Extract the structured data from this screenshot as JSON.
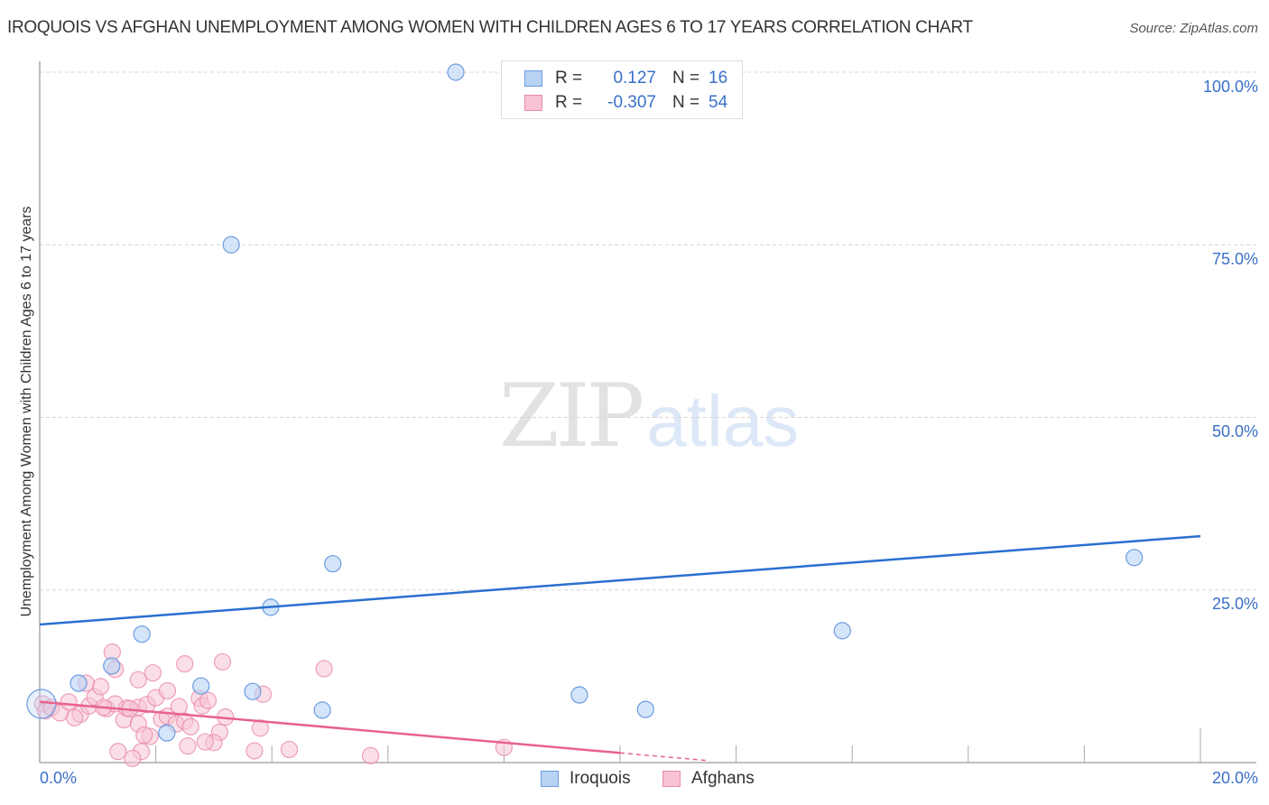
{
  "header": {
    "title": "IROQUOIS VS AFGHAN UNEMPLOYMENT AMONG WOMEN WITH CHILDREN AGES 6 TO 17 YEARS CORRELATION CHART",
    "source": "Source: ZipAtlas.com"
  },
  "watermark": {
    "zip": "ZIP",
    "atlas": "atlas"
  },
  "axes": {
    "ylabel": "Unemployment Among Women with Children Ages 6 to 17 years",
    "y_ticks": [
      "100.0%",
      "75.0%",
      "50.0%",
      "25.0%"
    ],
    "x_ticks": [
      "0.0%",
      "20.0%"
    ]
  },
  "legend": {
    "rows": [
      {
        "swatch": "iroquois",
        "r_label": "R =",
        "r_value": "0.127",
        "n_label": "N =",
        "n_value": "16"
      },
      {
        "swatch": "afghans",
        "r_label": "R =",
        "r_value": "-0.307",
        "n_label": "N =",
        "n_value": "54"
      }
    ],
    "bottom": [
      {
        "label": "Iroquois"
      },
      {
        "label": "Afghans"
      }
    ]
  },
  "colors": {
    "iroquois_fill": "#b9d3f5",
    "iroquois_stroke": "#6a9be0",
    "iroquois_line": "#2a6fd0",
    "afghans_fill": "#f8c4d4",
    "afghans_stroke": "#e88aaa",
    "afghans_line": "#e8628e",
    "tick_label": "#3a70c8"
  },
  "chart_data": {
    "type": "scatter",
    "title": "IROQUOIS VS AFGHAN UNEMPLOYMENT AMONG WOMEN WITH CHILDREN AGES 6 TO 17 YEARS CORRELATION CHART",
    "xlabel": "",
    "ylabel": "Unemployment Among Women with Children Ages 6 to 17 years",
    "xlim": [
      0,
      20
    ],
    "ylim": [
      0,
      100
    ],
    "x_tick_labels": [
      "0.0%",
      "20.0%"
    ],
    "y_tick_labels": [
      "25.0%",
      "50.0%",
      "75.0%",
      "100.0%"
    ],
    "grid": "horizontal dashed",
    "legend_position": "top-center and bottom",
    "series": [
      {
        "name": "Iroquois",
        "R": 0.127,
        "N": 16,
        "trend": {
          "x0": 0,
          "y0": 20.0,
          "x1": 20,
          "y1": 32.8
        },
        "points": [
          [
            7.17,
            100.0
          ],
          [
            3.3,
            75.0
          ],
          [
            5.05,
            28.8
          ],
          [
            18.86,
            29.7
          ],
          [
            3.98,
            22.5
          ],
          [
            13.83,
            19.1
          ],
          [
            1.76,
            18.6
          ],
          [
            1.24,
            14.0
          ],
          [
            2.78,
            11.1
          ],
          [
            3.67,
            10.3
          ],
          [
            0.67,
            11.5
          ],
          [
            9.3,
            9.8
          ],
          [
            10.44,
            7.7
          ],
          [
            4.87,
            7.6
          ],
          [
            2.19,
            4.3
          ],
          [
            0.03,
            8.5
          ]
        ]
      },
      {
        "name": "Afghans",
        "R": -0.307,
        "N": 54,
        "trend": {
          "x0": 0,
          "y0": 8.8,
          "x1": 10.0,
          "y1": 1.4,
          "dashed_to_x": 11.5,
          "dashed_to_y": 0.3
        },
        "points": [
          [
            0.05,
            8.5
          ],
          [
            0.1,
            7.5
          ],
          [
            0.2,
            8.0
          ],
          [
            0.35,
            7.2
          ],
          [
            0.5,
            8.8
          ],
          [
            0.7,
            7.0
          ],
          [
            0.85,
            8.2
          ],
          [
            0.95,
            9.5
          ],
          [
            1.05,
            11.0
          ],
          [
            0.8,
            11.5
          ],
          [
            1.15,
            7.8
          ],
          [
            1.3,
            8.5
          ],
          [
            1.45,
            6.2
          ],
          [
            1.5,
            7.9
          ],
          [
            1.1,
            8.0
          ],
          [
            1.7,
            8.0
          ],
          [
            1.7,
            12.0
          ],
          [
            1.85,
            8.4
          ],
          [
            1.95,
            13.0
          ],
          [
            1.3,
            13.5
          ],
          [
            1.25,
            16.0
          ],
          [
            1.55,
            7.8
          ],
          [
            2.1,
            6.3
          ],
          [
            2.0,
            9.4
          ],
          [
            1.7,
            5.6
          ],
          [
            1.9,
            3.8
          ],
          [
            1.75,
            1.6
          ],
          [
            1.6,
            0.6
          ],
          [
            2.2,
            10.4
          ],
          [
            2.2,
            6.7
          ],
          [
            2.35,
            5.6
          ],
          [
            2.4,
            8.1
          ],
          [
            2.5,
            6.0
          ],
          [
            2.6,
            5.2
          ],
          [
            2.5,
            14.3
          ],
          [
            2.75,
            9.3
          ],
          [
            2.8,
            8.2
          ],
          [
            2.55,
            2.4
          ],
          [
            2.9,
            9.0
          ],
          [
            3.1,
            4.4
          ],
          [
            3.0,
            2.9
          ],
          [
            3.15,
            14.6
          ],
          [
            3.2,
            6.6
          ],
          [
            3.7,
            1.7
          ],
          [
            3.8,
            5.0
          ],
          [
            3.85,
            9.9
          ],
          [
            4.3,
            1.9
          ],
          [
            4.9,
            13.6
          ],
          [
            5.7,
            1.0
          ],
          [
            8.0,
            2.2
          ],
          [
            1.8,
            4.0
          ],
          [
            1.35,
            1.6
          ],
          [
            0.6,
            6.5
          ],
          [
            2.85,
            3.0
          ]
        ]
      }
    ]
  }
}
